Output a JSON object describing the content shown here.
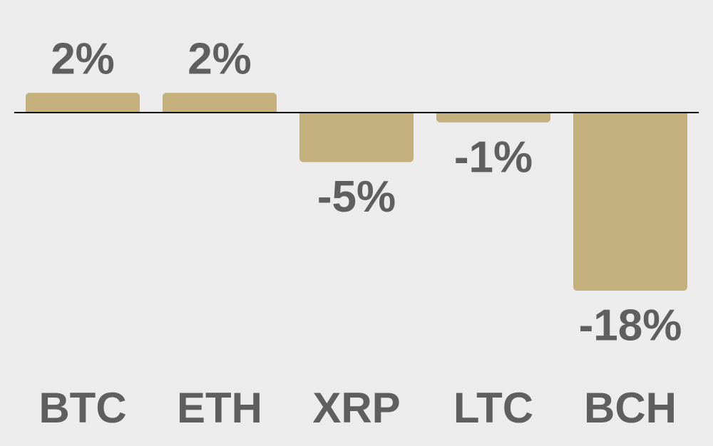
{
  "chart_data": {
    "type": "bar",
    "categories": [
      "BTC",
      "ETH",
      "XRP",
      "LTC",
      "BCH"
    ],
    "values": [
      2,
      2,
      -5,
      -1,
      -18
    ],
    "value_labels": [
      "2%",
      "2%",
      "-5%",
      "-1%",
      "-18%"
    ],
    "color": "#c5b17d"
  }
}
